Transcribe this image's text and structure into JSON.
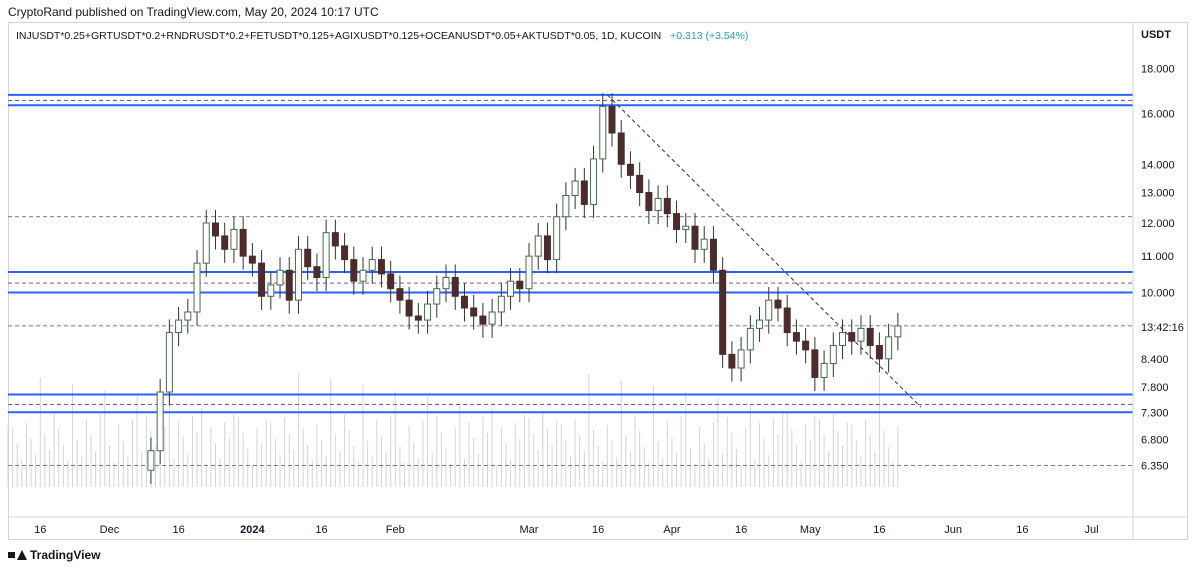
{
  "header": {
    "publisher_line": "CryptoRand published on TradingView.com, May 20, 2024 10:17 UTC",
    "symbol": "INJUSDT*0.25+GRTUSDT*0.2+RNDRUSDT*0.2+FETUSDT*0.125+AGIXUSDT*0.125+OCEANUSDT*0.05+AKTUSDT*0.05, 1D, KUCOIN",
    "change": "+0.313 (+3.54%)"
  },
  "price_axis": {
    "unit": "USDT",
    "ticks": [
      "18.000",
      "16.000",
      "14.000",
      "13.000",
      "12.000",
      "11.000",
      "10.000",
      "8.400",
      "7.800",
      "7.300",
      "6.800",
      "6.350"
    ],
    "countdown": "13:42:16"
  },
  "brand": {
    "label": "TradingView"
  },
  "colors": {
    "up": "#ffffff",
    "up_border": "#4a6b4f",
    "down": "#4a2c2c",
    "level": "#2962ff",
    "dash": "#555555",
    "volume": "#d1d4dc"
  },
  "chart_data": {
    "type": "candlestick",
    "title": "INJUSDT*0.25+GRTUSDT*0.2+RNDRUSDT*0.2+FETUSDT*0.125+AGIXUSDT*0.125+OCEANUSDT*0.05+AKTUSDT*0.05, 1D, KUCOIN",
    "scale": "log",
    "ylim": [
      6.0,
      19.0
    ],
    "xlim": [
      "2023-11-09",
      "2024-07-10"
    ],
    "x_ticks": [
      {
        "date": "2023-11-16",
        "label": "16"
      },
      {
        "date": "2023-12-01",
        "label": "Dec"
      },
      {
        "date": "2023-12-16",
        "label": "16"
      },
      {
        "date": "2024-01-01",
        "label": "2024"
      },
      {
        "date": "2024-01-16",
        "label": "16"
      },
      {
        "date": "2024-02-01",
        "label": "Feb"
      },
      {
        "date": "2024-03-01",
        "label": "Mar"
      },
      {
        "date": "2024-03-16",
        "label": "16"
      },
      {
        "date": "2024-04-01",
        "label": "Apr"
      },
      {
        "date": "2024-04-16",
        "label": "16"
      },
      {
        "date": "2024-05-01",
        "label": "May"
      },
      {
        "date": "2024-05-16",
        "label": "16"
      },
      {
        "date": "2024-06-01",
        "label": "Jun"
      },
      {
        "date": "2024-06-16",
        "label": "16"
      },
      {
        "date": "2024-07-01",
        "label": "Jul"
      }
    ],
    "close_series": [
      {
        "date": "2023-12-10",
        "close": 6.6
      },
      {
        "date": "2023-12-12",
        "close": 7.7
      },
      {
        "date": "2023-12-14",
        "close": 9.0
      },
      {
        "date": "2023-12-16",
        "close": 9.3
      },
      {
        "date": "2023-12-18",
        "close": 9.5
      },
      {
        "date": "2023-12-20",
        "close": 10.8
      },
      {
        "date": "2023-12-22",
        "close": 12.0
      },
      {
        "date": "2023-12-24",
        "close": 11.6
      },
      {
        "date": "2023-12-26",
        "close": 11.2
      },
      {
        "date": "2023-12-28",
        "close": 11.8
      },
      {
        "date": "2023-12-30",
        "close": 11.0
      },
      {
        "date": "2024-01-01",
        "close": 10.8
      },
      {
        "date": "2024-01-03",
        "close": 9.9
      },
      {
        "date": "2024-01-05",
        "close": 10.2
      },
      {
        "date": "2024-01-07",
        "close": 10.6
      },
      {
        "date": "2024-01-09",
        "close": 9.8
      },
      {
        "date": "2024-01-11",
        "close": 11.2
      },
      {
        "date": "2024-01-13",
        "close": 10.7
      },
      {
        "date": "2024-01-15",
        "close": 10.4
      },
      {
        "date": "2024-01-17",
        "close": 11.7
      },
      {
        "date": "2024-01-19",
        "close": 11.3
      },
      {
        "date": "2024-01-21",
        "close": 10.9
      },
      {
        "date": "2024-01-23",
        "close": 10.3
      },
      {
        "date": "2024-01-25",
        "close": 10.6
      },
      {
        "date": "2024-01-27",
        "close": 10.9
      },
      {
        "date": "2024-01-29",
        "close": 10.5
      },
      {
        "date": "2024-01-31",
        "close": 10.1
      },
      {
        "date": "2024-02-02",
        "close": 9.8
      },
      {
        "date": "2024-02-04",
        "close": 9.4
      },
      {
        "date": "2024-02-06",
        "close": 9.3
      },
      {
        "date": "2024-02-08",
        "close": 9.7
      },
      {
        "date": "2024-02-10",
        "close": 10.1
      },
      {
        "date": "2024-02-12",
        "close": 10.4
      },
      {
        "date": "2024-02-14",
        "close": 9.9
      },
      {
        "date": "2024-02-16",
        "close": 9.6
      },
      {
        "date": "2024-02-18",
        "close": 9.4
      },
      {
        "date": "2024-02-20",
        "close": 9.2
      },
      {
        "date": "2024-02-22",
        "close": 9.5
      },
      {
        "date": "2024-02-24",
        "close": 9.9
      },
      {
        "date": "2024-02-26",
        "close": 10.3
      },
      {
        "date": "2024-02-28",
        "close": 10.1
      },
      {
        "date": "2024-03-01",
        "close": 11.0
      },
      {
        "date": "2024-03-03",
        "close": 11.6
      },
      {
        "date": "2024-03-05",
        "close": 10.9
      },
      {
        "date": "2024-03-07",
        "close": 12.2
      },
      {
        "date": "2024-03-09",
        "close": 12.9
      },
      {
        "date": "2024-03-11",
        "close": 13.4
      },
      {
        "date": "2024-03-13",
        "close": 12.6
      },
      {
        "date": "2024-03-15",
        "close": 14.2
      },
      {
        "date": "2024-03-17",
        "close": 16.3
      },
      {
        "date": "2024-03-19",
        "close": 15.2
      },
      {
        "date": "2024-03-21",
        "close": 14.0
      },
      {
        "date": "2024-03-23",
        "close": 13.6
      },
      {
        "date": "2024-03-25",
        "close": 13.0
      },
      {
        "date": "2024-03-27",
        "close": 12.4
      },
      {
        "date": "2024-03-29",
        "close": 12.8
      },
      {
        "date": "2024-03-31",
        "close": 12.3
      },
      {
        "date": "2024-04-02",
        "close": 11.8
      },
      {
        "date": "2024-04-04",
        "close": 11.9
      },
      {
        "date": "2024-04-06",
        "close": 11.2
      },
      {
        "date": "2024-04-08",
        "close": 11.5
      },
      {
        "date": "2024-04-10",
        "close": 10.6
      },
      {
        "date": "2024-04-12",
        "close": 8.5
      },
      {
        "date": "2024-04-14",
        "close": 8.2
      },
      {
        "date": "2024-04-16",
        "close": 8.6
      },
      {
        "date": "2024-04-18",
        "close": 9.1
      },
      {
        "date": "2024-04-20",
        "close": 9.3
      },
      {
        "date": "2024-04-22",
        "close": 9.8
      },
      {
        "date": "2024-04-24",
        "close": 9.6
      },
      {
        "date": "2024-04-26",
        "close": 9.0
      },
      {
        "date": "2024-04-28",
        "close": 8.8
      },
      {
        "date": "2024-04-30",
        "close": 8.6
      },
      {
        "date": "2024-05-02",
        "close": 8.0
      },
      {
        "date": "2024-05-04",
        "close": 8.3
      },
      {
        "date": "2024-05-06",
        "close": 8.7
      },
      {
        "date": "2024-05-08",
        "close": 9.0
      },
      {
        "date": "2024-05-10",
        "close": 8.8
      },
      {
        "date": "2024-05-12",
        "close": 9.1
      },
      {
        "date": "2024-05-14",
        "close": 8.7
      },
      {
        "date": "2024-05-16",
        "close": 8.4
      },
      {
        "date": "2024-05-18",
        "close": 8.9
      },
      {
        "date": "2024-05-20",
        "close": 9.16
      }
    ],
    "horizontal_levels": [
      16.8,
      16.35,
      10.55,
      10.0,
      7.65,
      7.3
    ],
    "dashed_levels": [
      16.55,
      12.2,
      10.25,
      9.16,
      7.45,
      6.35
    ],
    "trendline": {
      "from": {
        "date": "2024-03-18",
        "price": 16.8
      },
      "to": {
        "date": "2024-05-25",
        "price": 7.4
      }
    },
    "last_price": 9.16
  }
}
